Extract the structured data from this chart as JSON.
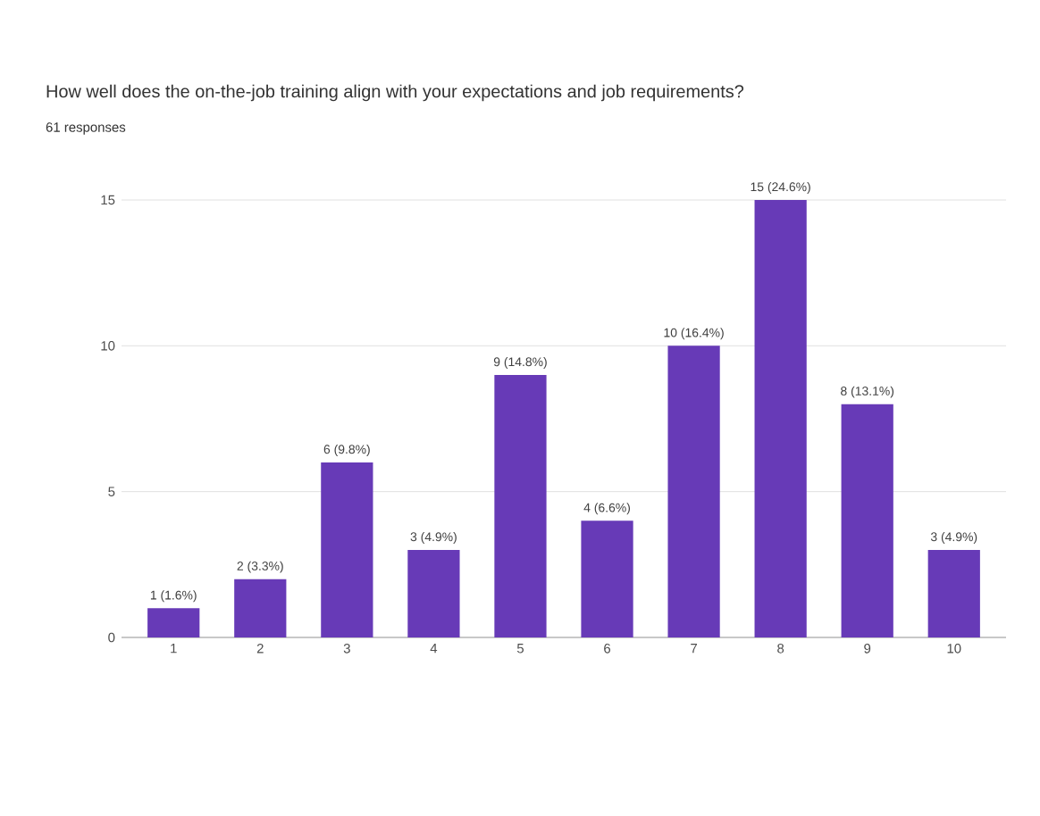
{
  "chart_data": {
    "type": "bar",
    "title": "How well does the on-the-job training align with your expectations and job requirements?",
    "subtitle": "61 responses",
    "categories": [
      "1",
      "2",
      "3",
      "4",
      "5",
      "6",
      "7",
      "8",
      "9",
      "10"
    ],
    "values": [
      1,
      2,
      6,
      3,
      9,
      4,
      10,
      15,
      8,
      3
    ],
    "value_labels": [
      "1 (1.6%)",
      "2 (3.3%)",
      "6 (9.8%)",
      "3 (4.9%)",
      "9 (14.8%)",
      "4 (6.6%)",
      "10 (16.4%)",
      "15 (24.6%)",
      "8 (13.1%)",
      "3 (4.9%)"
    ],
    "color": "#673ab7",
    "ylim": [
      0,
      15
    ],
    "yticks": [
      0,
      5,
      10,
      15
    ],
    "grid": "y"
  }
}
